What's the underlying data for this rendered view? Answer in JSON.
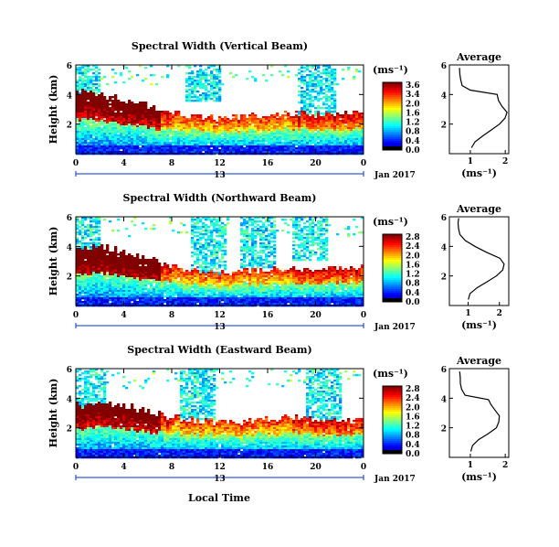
{
  "figure": {
    "xlabel": "Local Time",
    "date_label": "Jan 2017",
    "day_label": "13"
  },
  "chart_data": [
    {
      "type": "heatmap",
      "title": "Spectral Width (Vertical Beam)",
      "ylabel": "Height (km)",
      "xlim": [
        0,
        24
      ],
      "ylim": [
        0,
        6
      ],
      "x_ticks": [
        "0",
        "4",
        "8",
        "12",
        "16",
        "20",
        "0"
      ],
      "y_ticks": [
        "2",
        "4",
        "6"
      ],
      "colorbar": {
        "label": "(ms⁻¹)",
        "ticks": [
          "3.6",
          "3.4",
          "2.0",
          "1.6",
          "1.2",
          "0.8",
          "0.4",
          "0.0"
        ],
        "range": [
          0,
          3.6
        ]
      },
      "regimes": {
        "layer_top_km": [
          4.2,
          4.0,
          3.6,
          3.2,
          2.8,
          2.5,
          2.4,
          2.5,
          2.7,
          2.8,
          2.6,
          2.6,
          2.8
        ],
        "red_core": 0.9,
        "sparse_caps": [
          [
            0.5,
            6.0,
            5.0
          ],
          [
            10.5,
            6.0,
            2.5
          ],
          [
            20.0,
            5.5,
            3.0
          ]
        ]
      },
      "inset": {
        "title": "Average",
        "xlabel": "(ms⁻¹)",
        "x_ticks": [
          "1",
          "2"
        ],
        "y_ticks": [
          "2",
          "4",
          "6"
        ],
        "xlim": [
          0.4,
          2.1
        ],
        "ylim": [
          0,
          6
        ],
        "profile": {
          "height_km": [
            0.4,
            0.8,
            1.2,
            1.6,
            2.0,
            2.4,
            2.8,
            3.2,
            3.6,
            4.0,
            4.3,
            4.6,
            5.0,
            5.4,
            5.8
          ],
          "width": [
            1.05,
            1.12,
            1.35,
            1.6,
            1.85,
            2.0,
            2.05,
            1.9,
            1.8,
            1.75,
            1.0,
            0.75,
            0.72,
            0.7,
            0.68
          ]
        }
      }
    },
    {
      "type": "heatmap",
      "title": "Spectral Width (Northward Beam)",
      "ylabel": "Height (km)",
      "xlim": [
        0,
        24
      ],
      "ylim": [
        0,
        6
      ],
      "x_ticks": [
        "0",
        "4",
        "8",
        "12",
        "16",
        "20",
        "0"
      ],
      "y_ticks": [
        "2",
        "4",
        "6"
      ],
      "colorbar": {
        "label": "(ms⁻¹)",
        "ticks": [
          "2.8",
          "2.4",
          "2.0",
          "1.6",
          "1.2",
          "0.8",
          "0.4",
          "0.0"
        ],
        "range": [
          0,
          2.8
        ]
      },
      "regimes": {
        "layer_top_km": [
          3.8,
          4.0,
          3.6,
          3.1,
          2.6,
          2.4,
          2.2,
          2.3,
          2.5,
          2.6,
          2.4,
          2.5,
          2.6
        ],
        "red_core": 1.0,
        "sparse_caps": [
          [
            0.5,
            5.5,
            3.5
          ],
          [
            11.0,
            6.0,
            4.0
          ],
          [
            15.0,
            5.5,
            3.0
          ],
          [
            19.5,
            5.5,
            2.5
          ]
        ]
      },
      "inset": {
        "title": "Average",
        "xlabel": "(ms⁻¹)",
        "x_ticks": [
          "1",
          "2"
        ],
        "y_ticks": [
          "2",
          "4",
          "6"
        ],
        "xlim": [
          0.4,
          2.3
        ],
        "ylim": [
          0,
          6
        ],
        "profile": {
          "height_km": [
            0.4,
            0.8,
            1.2,
            1.6,
            2.0,
            2.4,
            2.8,
            3.2,
            3.6,
            4.0,
            4.4,
            4.8,
            5.2,
            5.6,
            5.9
          ],
          "width": [
            1.0,
            1.05,
            1.3,
            1.6,
            1.9,
            2.1,
            2.15,
            2.0,
            1.6,
            1.2,
            0.9,
            0.75,
            0.7,
            0.68,
            0.68
          ]
        }
      }
    },
    {
      "type": "heatmap",
      "title": "Spectral Width (Eastward Beam)",
      "ylabel": "Height (km)",
      "xlim": [
        0,
        24
      ],
      "ylim": [
        0,
        6
      ],
      "x_ticks": [
        "0",
        "4",
        "8",
        "12",
        "16",
        "20",
        "0"
      ],
      "y_ticks": [
        "2",
        "4",
        "6"
      ],
      "colorbar": {
        "label": "(ms⁻¹)",
        "ticks": [
          "2.8",
          "2.4",
          "2.0",
          "1.6",
          "1.2",
          "0.8",
          "0.4",
          "0.0"
        ],
        "range": [
          0,
          2.8
        ]
      },
      "regimes": {
        "layer_top_km": [
          3.5,
          3.8,
          3.5,
          3.1,
          2.7,
          2.5,
          2.4,
          2.4,
          2.6,
          2.7,
          2.5,
          2.4,
          2.5
        ],
        "red_core": 0.9,
        "sparse_caps": [
          [
            1.0,
            5.5,
            3.5
          ],
          [
            10.0,
            6.0,
            3.5
          ],
          [
            20.5,
            5.5,
            3.0
          ]
        ]
      },
      "inset": {
        "title": "Average",
        "xlabel": "(ms⁻¹)",
        "x_ticks": [
          "1",
          "2"
        ],
        "y_ticks": [
          "2",
          "4",
          "6"
        ],
        "xlim": [
          0.4,
          2.1
        ],
        "ylim": [
          0,
          6
        ],
        "profile": {
          "height_km": [
            0.4,
            0.8,
            1.2,
            1.6,
            2.0,
            2.4,
            2.8,
            3.2,
            3.6,
            3.9,
            4.2,
            4.6,
            5.0,
            5.4,
            5.8
          ],
          "width": [
            1.0,
            1.05,
            1.25,
            1.5,
            1.75,
            1.8,
            1.85,
            1.7,
            1.6,
            1.5,
            0.85,
            0.75,
            0.7,
            0.7,
            0.68
          ]
        }
      }
    }
  ]
}
